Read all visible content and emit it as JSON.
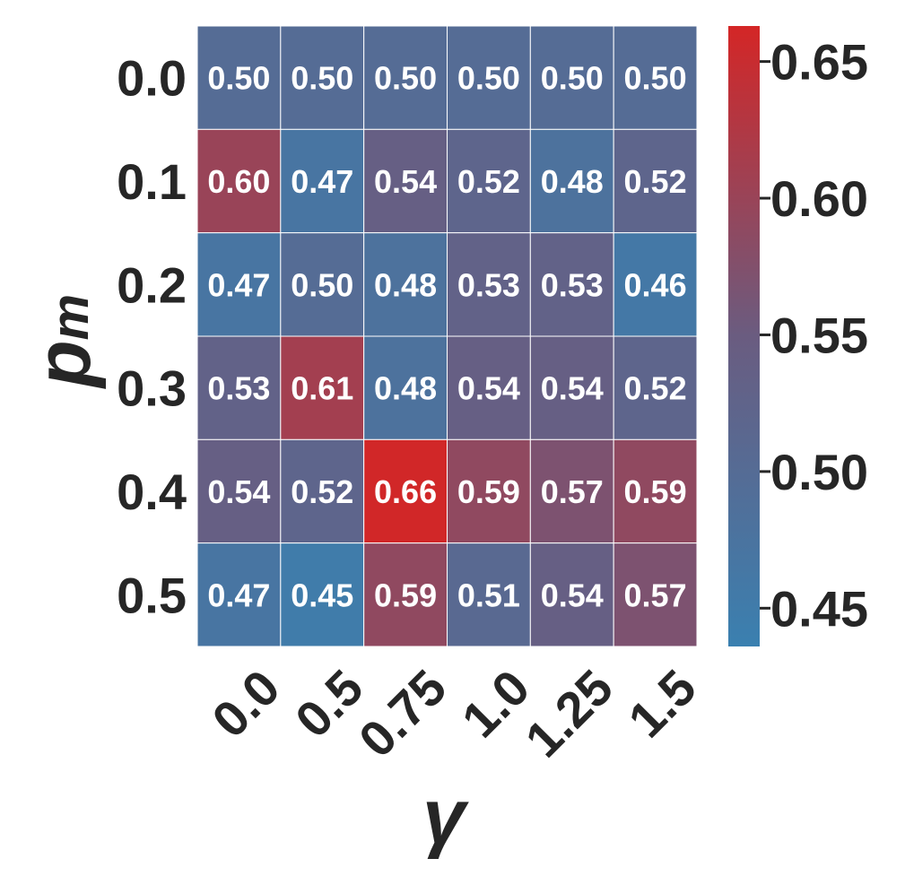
{
  "chart_data": {
    "type": "heatmap",
    "title": "",
    "xlabel": "γ",
    "ylabel_main": "p",
    "ylabel_sub": "m",
    "x_categories": [
      "0.0",
      "0.5",
      "0.75",
      "1.0",
      "1.25",
      "1.5"
    ],
    "y_categories": [
      "0.0",
      "0.1",
      "0.2",
      "0.3",
      "0.4",
      "0.5"
    ],
    "values": [
      [
        0.5,
        0.5,
        0.5,
        0.5,
        0.5,
        0.5
      ],
      [
        0.6,
        0.47,
        0.54,
        0.52,
        0.48,
        0.52
      ],
      [
        0.47,
        0.5,
        0.48,
        0.53,
        0.53,
        0.46
      ],
      [
        0.53,
        0.61,
        0.48,
        0.54,
        0.54,
        0.52
      ],
      [
        0.54,
        0.52,
        0.66,
        0.59,
        0.57,
        0.59
      ],
      [
        0.47,
        0.45,
        0.59,
        0.51,
        0.54,
        0.57
      ]
    ],
    "colorbar": {
      "vmin": 0.436,
      "vmax": 0.663,
      "ticks": [
        0.45,
        0.5,
        0.55,
        0.6,
        0.65
      ],
      "tick_labels": [
        "0.45",
        "0.50",
        "0.55",
        "0.60",
        "0.65"
      ],
      "low_color": "#3a80b0",
      "mid_color": "#6a5c80",
      "high_color": "#d42626"
    },
    "cell_border_color": "#ffffff",
    "annotation_color": "#ffffff",
    "legend": "colorbar-right",
    "grid": false
  }
}
